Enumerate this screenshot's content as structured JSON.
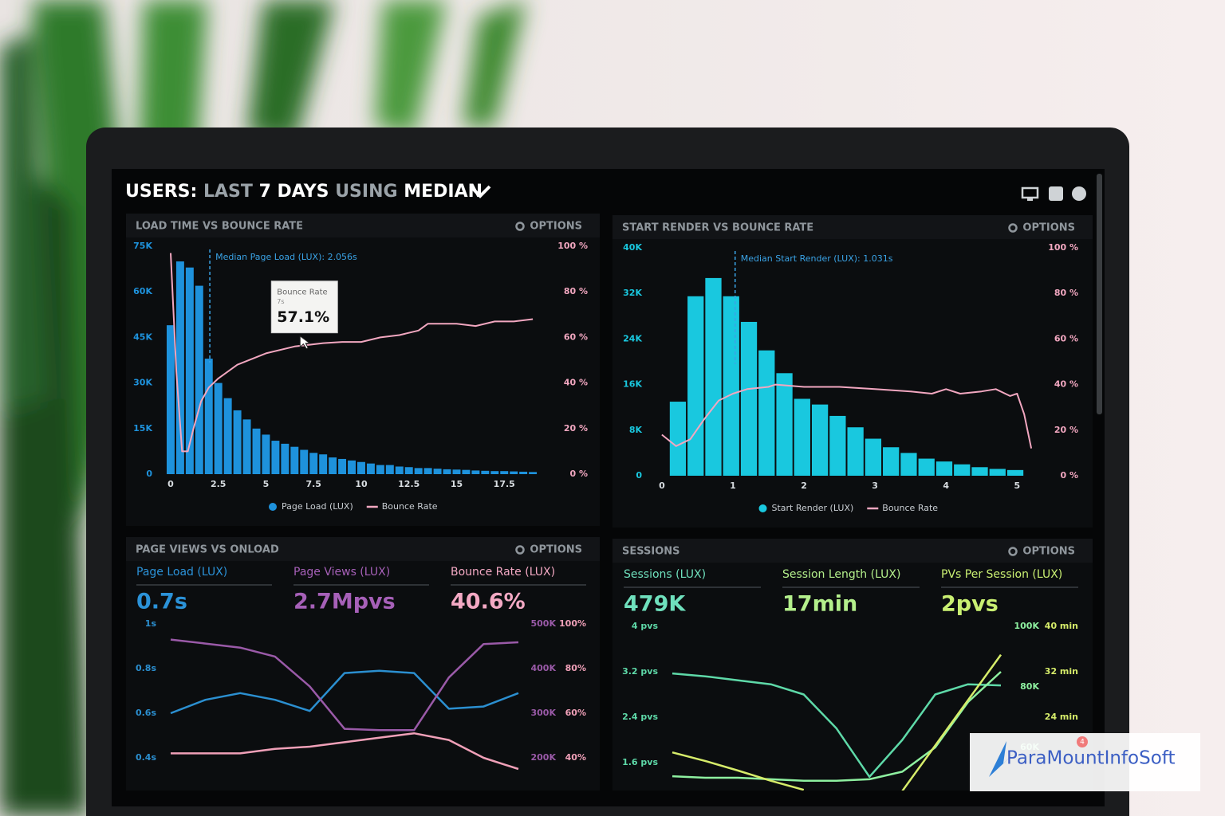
{
  "header": {
    "title": [
      "USERS:",
      "LAST",
      "7 DAYS",
      "USING",
      "MEDIAN"
    ]
  },
  "chart_data": [
    {
      "type": "histogram",
      "title": "LOAD TIME VS BOUNCE RATE",
      "options": "OPTIONS",
      "name": "Page Load (LUX)",
      "color": "#1e92dc",
      "bins": [
        -0.25,
        0.25,
        0.75,
        1.25,
        1.75,
        2.25,
        2.75,
        3.25,
        3.75,
        4.25,
        4.75,
        5.25,
        5.75,
        6.25,
        6.75,
        7.25,
        7.75,
        8.25,
        8.75,
        9.25,
        9.75,
        10.25,
        10.75,
        11.25,
        11.75,
        12.25,
        12.75,
        13.25,
        13.75,
        14.25,
        14.75,
        15.25,
        15.75,
        16.25,
        16.75,
        17.25,
        17.75,
        18.25,
        18.75,
        19.25
      ],
      "values": [
        49000,
        70000,
        68000,
        62000,
        38000,
        30000,
        25000,
        21000,
        18000,
        15000,
        13000,
        11000,
        10000,
        9000,
        8000,
        7000,
        6500,
        5500,
        5000,
        4500,
        4000,
        3500,
        3000,
        3000,
        2500,
        2300,
        2000,
        2000,
        1800,
        1600,
        1500,
        1400,
        1200,
        1100,
        1000,
        1000,
        900,
        800,
        700
      ],
      "xlim": [
        -0.5,
        20
      ],
      "xticks": [
        0,
        2.5,
        5,
        7.5,
        10,
        12.5,
        15,
        17.5
      ],
      "ylim": [
        0,
        75000
      ],
      "yticks": [
        0,
        {
          "value": 15000,
          "label": "15K"
        },
        {
          "value": 30000,
          "label": "30K"
        },
        {
          "value": 45000,
          "label": "45K"
        },
        {
          "value": 60000,
          "label": "60K"
        },
        {
          "value": 75000,
          "label": "75K"
        }
      ],
      "y2lim": [
        0,
        100
      ],
      "y2ticks": [
        {
          "value": 0,
          "label": "0 %"
        },
        {
          "value": 20,
          "label": "20 %"
        },
        {
          "value": 40,
          "label": "40 %"
        },
        {
          "value": 60,
          "label": "60 %"
        },
        {
          "value": 80,
          "label": "80 %"
        },
        {
          "value": 100,
          "label": "100 %"
        }
      ],
      "series": [
        {
          "name": "Bounce Rate",
          "color": "#f2a7c0",
          "axis": "y2",
          "x": [
            0,
            0.3,
            0.6,
            0.9,
            1.2,
            1.6,
            2,
            2.5,
            3.5,
            5,
            6.5,
            8,
            9,
            10,
            11,
            12,
            13,
            13.5,
            14,
            15,
            16,
            17,
            18,
            19
          ],
          "values": [
            97,
            45,
            10,
            10,
            20,
            32,
            38,
            42,
            48,
            53,
            56,
            57.5,
            58,
            58,
            60,
            61,
            63,
            66,
            66,
            66,
            65,
            67,
            67,
            68
          ]
        }
      ],
      "median": {
        "text": "Median Page Load (LUX): 2.056s",
        "x": 2.056
      },
      "tooltip": {
        "title": "Bounce Rate",
        "subtitle": "7s",
        "label": "57.1%",
        "x": 7,
        "value": 57.1
      }
    },
    {
      "type": "histogram",
      "title": "START RENDER VS BOUNCE RATE",
      "options": "OPTIONS",
      "name": "Start Render (LUX)",
      "color": "#19c8df",
      "bins": [
        0.1,
        0.35,
        0.6,
        0.85,
        1.1,
        1.35,
        1.6,
        1.85,
        2.1,
        2.35,
        2.6,
        2.85,
        3.1,
        3.35,
        3.6,
        3.85,
        4.1,
        4.35,
        4.6,
        4.85,
        5.1
      ],
      "values": [
        13000,
        31500,
        34700,
        31500,
        27000,
        22000,
        18000,
        13500,
        12500,
        10500,
        8500,
        6500,
        5000,
        4000,
        3000,
        2500,
        2000,
        1500,
        1200,
        1000
      ],
      "xlim": [
        -0.1,
        5.3
      ],
      "xticks": [
        0,
        1,
        2,
        3,
        4,
        5
      ],
      "ylim": [
        0,
        40000
      ],
      "yticks": [
        0,
        {
          "value": 8000,
          "label": "8K"
        },
        {
          "value": 16000,
          "label": "16K"
        },
        {
          "value": 24000,
          "label": "24K"
        },
        {
          "value": 32000,
          "label": "32K"
        },
        {
          "value": 40000,
          "label": "40K"
        }
      ],
      "y2lim": [
        0,
        100
      ],
      "y2ticks": [
        {
          "value": 0,
          "label": "0 %"
        },
        {
          "value": 20,
          "label": "20 %"
        },
        {
          "value": 40,
          "label": "40 %"
        },
        {
          "value": 60,
          "label": "60 %"
        },
        {
          "value": 80,
          "label": "80 %"
        },
        {
          "value": 100,
          "label": "100 %"
        }
      ],
      "series": [
        {
          "name": "Bounce Rate",
          "color": "#f2a7c0",
          "axis": "y2",
          "x": [
            0,
            0.2,
            0.4,
            0.6,
            0.8,
            1,
            1.2,
            1.5,
            1.6,
            2,
            2.5,
            3,
            3.5,
            3.8,
            4,
            4.2,
            4.5,
            4.7,
            4.9,
            5,
            5.1,
            5.2
          ],
          "values": [
            18,
            13,
            16,
            25,
            33,
            36,
            38,
            39,
            40,
            39,
            39,
            38,
            37,
            36,
            38,
            36,
            37,
            38,
            35,
            36,
            27,
            12
          ]
        }
      ],
      "median": {
        "text": "Median Start Render (LUX): 1.031s",
        "x": 1.031
      }
    },
    {
      "type": "line",
      "title": "PAGE VIEWS VS ONLOAD",
      "options": "OPTIONS",
      "kpis": [
        {
          "label": "Page Load (LUX)",
          "value": "0.7s",
          "color": "#2b92d8"
        },
        {
          "label": "Page Views (LUX)",
          "value": "2.7Mpvs",
          "color": "#a660b8"
        },
        {
          "label": "Bounce Rate (LUX)",
          "value": "40.6%",
          "color": "#f4a9c4"
        }
      ],
      "x": [
        0,
        1,
        2,
        3,
        4,
        5,
        6,
        7,
        8,
        9,
        10
      ],
      "ylim": [
        0.3,
        1
      ],
      "yticks": [
        {
          "value": 1,
          "label": "1s"
        },
        {
          "value": 0.8,
          "label": "0.8s"
        },
        {
          "value": 0.6,
          "label": "0.6s"
        },
        {
          "value": 0.4,
          "label": "0.4s"
        }
      ],
      "y2lim": [
        150000,
        500000
      ],
      "y2ticks": [
        {
          "value": 500000,
          "label": "500K"
        },
        {
          "value": 400000,
          "label": "400K"
        },
        {
          "value": 300000,
          "label": "300K"
        },
        {
          "value": 200000,
          "label": "200K"
        }
      ],
      "y3lim": [
        30,
        100
      ],
      "y3ticks": [
        {
          "value": 100,
          "label": "100%"
        },
        {
          "value": 80,
          "label": "80%"
        },
        {
          "value": 60,
          "label": "60%"
        },
        {
          "value": 40,
          "label": "40%"
        }
      ],
      "series": [
        {
          "color": "#2b8fd0",
          "axis": "y",
          "values": [
            0.6,
            0.66,
            0.69,
            0.66,
            0.61,
            0.78,
            0.79,
            0.78,
            0.62,
            0.63,
            0.69
          ]
        },
        {
          "color": "#9a5aa8",
          "axis": "y2",
          "values": [
            465000,
            456000,
            447000,
            427000,
            360000,
            265000,
            262000,
            262000,
            380000,
            455000,
            459000
          ]
        },
        {
          "color": "#f0a0b8",
          "axis": "y3",
          "values": [
            42,
            42,
            42,
            44,
            45,
            47,
            49,
            51,
            48,
            40,
            35
          ]
        }
      ]
    },
    {
      "type": "line",
      "title": "SESSIONS",
      "options": "OPTIONS",
      "kpis": [
        {
          "label": "Sessions (LUX)",
          "value": "479K",
          "color": "#6fe0bd"
        },
        {
          "label": "Session Length (LUX)",
          "value": "17min",
          "color": "#b4f08c"
        },
        {
          "label": "PVs Per Session (LUX)",
          "value": "2pvs",
          "color": "#c9ef72"
        }
      ],
      "x": [
        0,
        1,
        2,
        3,
        4,
        5,
        6,
        7,
        8,
        9,
        10
      ],
      "ylim": [
        0.8,
        4
      ],
      "yticks": [
        {
          "value": 4,
          "label": "4 pvs"
        },
        {
          "value": 3.2,
          "label": "3.2 pvs"
        },
        {
          "value": 2.4,
          "label": "2.4 pvs"
        },
        {
          "value": 1.6,
          "label": "1.6 pvs"
        }
      ],
      "y2lim": [
        40000,
        100000
      ],
      "y2ticks": [
        {
          "value": 100000,
          "label": "100K"
        },
        {
          "value": 80000,
          "label": "80K"
        },
        {
          "value": 60000,
          "label": "60K"
        }
      ],
      "y3lim": [
        8,
        40
      ],
      "y3ticks": [
        {
          "value": 40,
          "label": "40 min"
        },
        {
          "value": 32,
          "label": "32 min"
        },
        {
          "value": 24,
          "label": "24 min"
        }
      ],
      "series": [
        {
          "color": "#5ed9a8",
          "axis": "y",
          "values": [
            3.17,
            3.12,
            3.05,
            2.98,
            2.8,
            2.2,
            1.35,
            2.0,
            2.8,
            2.98,
            2.96
          ]
        },
        {
          "color": "#8ef0a0",
          "axis": "y2",
          "values": [
            50500,
            50000,
            50000,
            49500,
            49000,
            49000,
            49500,
            52000,
            60000,
            75000,
            85000
          ]
        },
        {
          "color": "#d6ec6a",
          "axis": "y3",
          "values": [
            17.8,
            16.3,
            14.6,
            12.8,
            11.2,
            null,
            null,
            11,
            19,
            27,
            35
          ]
        }
      ]
    }
  ],
  "watermark": {
    "text": "ParaMountInfoSoft",
    "badge": "4"
  }
}
